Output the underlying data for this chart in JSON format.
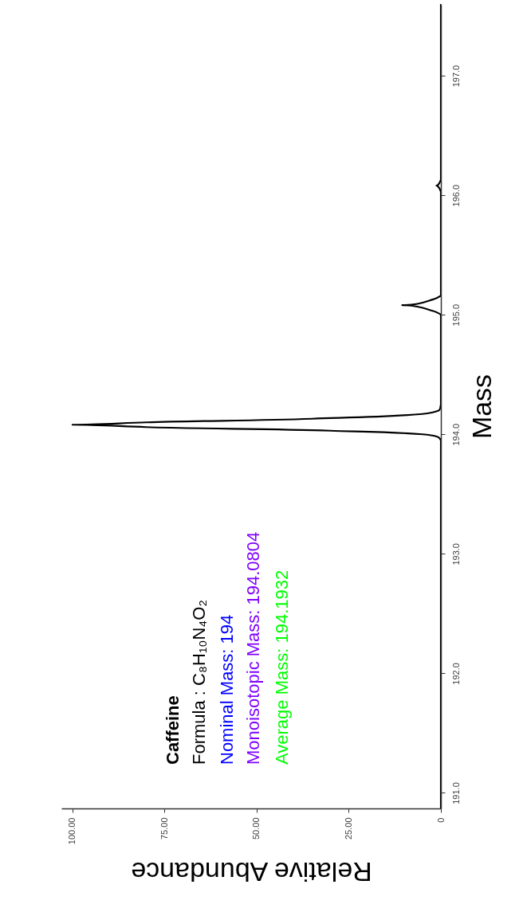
{
  "chart_data": {
    "type": "line",
    "xlabel": "Relative Abundance",
    "ylabel": "Mass",
    "series": [
      {
        "color": "#000000",
        "x": [
          0,
          0,
          1,
          5,
          30,
          80,
          100,
          80,
          35,
          5,
          0.5,
          0,
          0,
          3,
          10.5,
          3,
          0,
          0,
          1.2,
          0,
          0
        ],
        "values": [
          190.87,
          193.95,
          193.98,
          194.0,
          194.03,
          194.06,
          194.08,
          194.1,
          194.13,
          194.17,
          194.2,
          194.25,
          195.0,
          195.04,
          195.08,
          195.12,
          195.16,
          196.03,
          196.08,
          196.13,
          197.6
        ]
      }
    ],
    "ylim": [
      190.87,
      197.6
    ],
    "yticks": [
      {
        "value": 191,
        "label": "191.0"
      },
      {
        "value": 192,
        "label": "192.0"
      },
      {
        "value": 193,
        "label": "193.0"
      },
      {
        "value": 194,
        "label": "194.0"
      },
      {
        "value": 195,
        "label": "195.0"
      },
      {
        "value": 196,
        "label": "196.0"
      },
      {
        "value": 197,
        "label": "197.0"
      }
    ],
    "xlim": [
      103,
      0
    ],
    "xticks": [
      0,
      {
        "value": 25,
        "label": "25.00"
      },
      {
        "value": 50,
        "label": "50.00"
      },
      {
        "value": 75,
        "label": "75.00"
      },
      {
        "value": 100,
        "label": "100.00"
      }
    ],
    "annotations": [
      "Caffeine",
      "Formula : C₈H₁₀N₄O₂",
      "Nominal Mass:  194",
      "Monoisotopic Mass: 194.0804",
      "Average Mass: 194.1932"
    ],
    "grid": false,
    "marker": "none",
    "line_style": "solid"
  }
}
